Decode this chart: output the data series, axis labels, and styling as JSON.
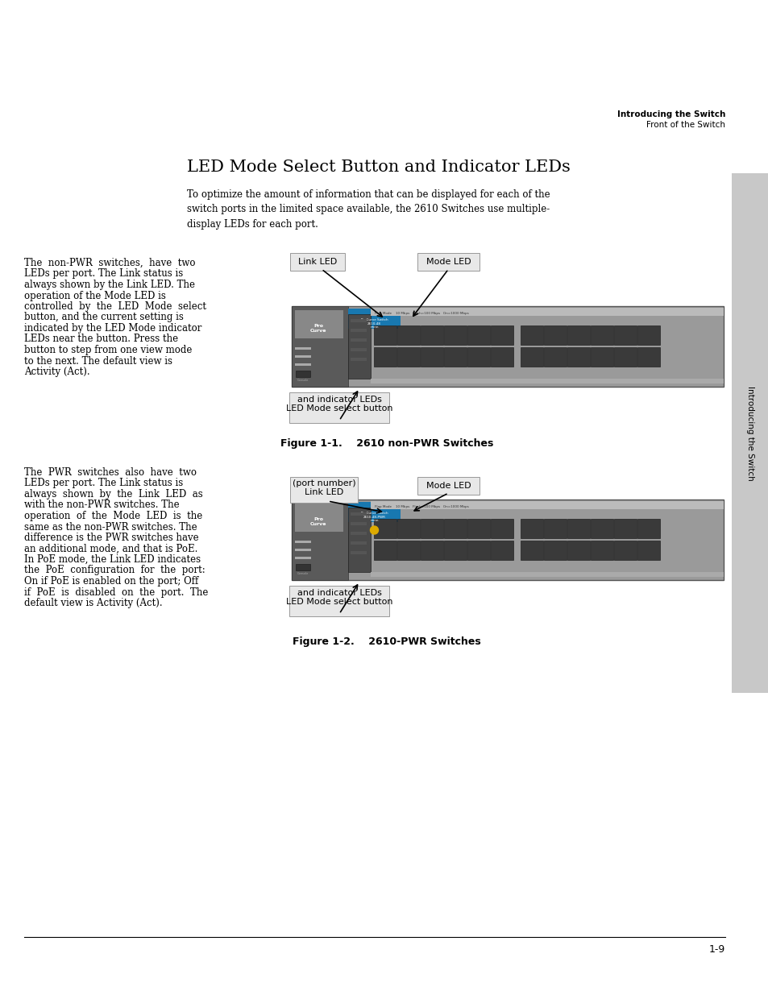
{
  "page_title": "Introducing the Switch",
  "page_subtitle": "Front of the Switch",
  "section_title": "LED Mode Select Button and Indicator LEDs",
  "intro_text": "To optimize the amount of information that can be displayed for each of the\nswitch ports in the limited space available, the 2610 Switches use multiple-\ndisplay LEDs for each port.",
  "sidebar_text": "Introducing the Switch",
  "figure1_caption": "Figure 1-1.    2610 non-PWR Switches",
  "figure2_caption": "Figure 1-2.    2610-PWR Switches",
  "left_text1_lines": [
    "The  non-PWR  switches,  have  two",
    "LEDs per port. The Link status is",
    "always shown by the Link LED. The",
    "operation of the Mode LED is",
    "controlled  by  the  LED  Mode  select",
    "button, and the current setting is",
    "indicated by the LED Mode indicator",
    "LEDs near the button. Press the",
    "button to step from one view mode",
    "to the next. The default view is",
    "Activity (Act)."
  ],
  "left_text2_lines": [
    "The  PWR  switches  also  have  two",
    "LEDs per port. The Link status is",
    "always  shown  by  the  Link  LED  as",
    "with the non-PWR switches. The",
    "operation  of  the  Mode  LED  is  the",
    "same as the non-PWR switches. The",
    "difference is the PWR switches have",
    "an additional mode, and that is PoE.",
    "In PoE mode, the Link LED indicates",
    "the  PoE  configuration  for  the  port:",
    "On if PoE is enabled on the port; Off",
    "if  PoE  is  disabled  on  the  port.  The",
    "default view is Activity (Act)."
  ],
  "label_link_led": "Link LED",
  "label_mode_led": "Mode LED",
  "label_link_led2_line1": "Link LED",
  "label_link_led2_line2": "(port number)",
  "label_led_mode_btn_line1": "LED Mode select button",
  "label_led_mode_btn_line2": "and indicator LEDs",
  "page_number": "1-9",
  "bg_color": "#ffffff",
  "sidebar_bg": "#c8c8c8",
  "text_color": "#000000",
  "switch_body_color": "#9a9a9a",
  "switch_dark_color": "#6a6a6a",
  "switch_darker_color": "#4a4a4a",
  "switch_panel_color": "#5a5a5a",
  "switch_blue_color": "#1878b0",
  "switch_port_color": "#3a3a3a",
  "label_box_bg": "#e8e8e8",
  "label_box_edge": "#999999"
}
